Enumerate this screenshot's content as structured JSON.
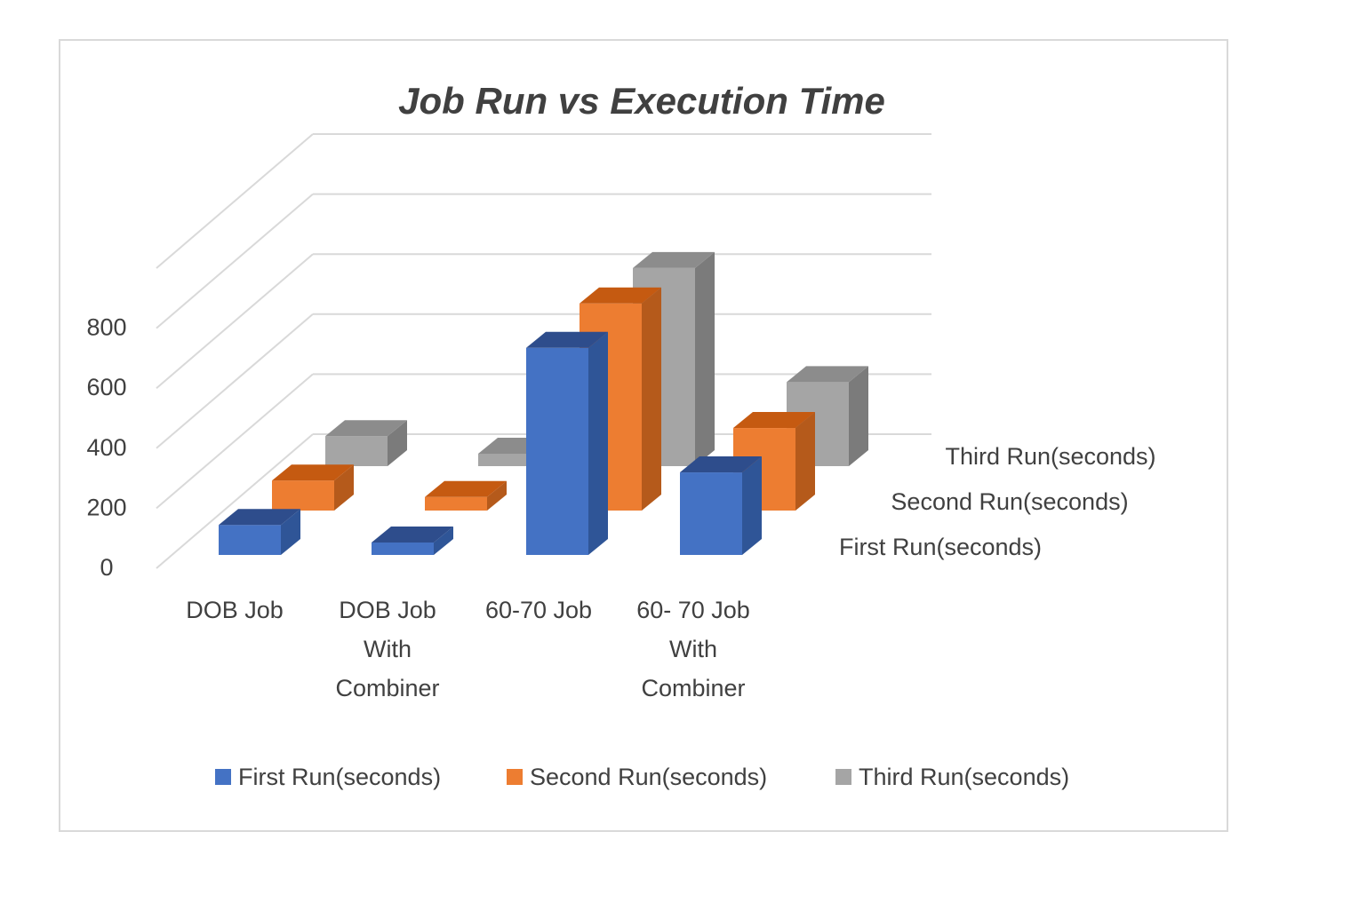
{
  "chart_data": {
    "type": "bar",
    "subtype": "3d-clustered-column",
    "title": "Job Run vs Execution Time",
    "categories": [
      "DOB Job",
      "DOB Job With Combiner",
      "60-70 Job",
      "60- 70 Job With Combiner"
    ],
    "category_lines": [
      [
        "DOB Job"
      ],
      [
        "DOB Job",
        "With",
        "Combiner"
      ],
      [
        "60-70 Job"
      ],
      [
        "60- 70 Job",
        "With",
        "Combiner"
      ]
    ],
    "series": [
      {
        "name": "First Run(seconds)",
        "color": "#4472c4",
        "side_color": "#2f5597",
        "top_color": "#2e4d8c",
        "values": [
          100,
          35,
          690,
          275
        ]
      },
      {
        "name": "Second Run(seconds)",
        "color": "#ed7d31",
        "side_color": "#b55a1b",
        "top_color": "#c55a11",
        "values": [
          100,
          45,
          690,
          275
        ]
      },
      {
        "name": "Third Run(seconds)",
        "color": "#a5a5a5",
        "side_color": "#7b7b7b",
        "top_color": "#8c8c8c",
        "values": [
          100,
          20,
          660,
          280
        ]
      }
    ],
    "y_ticks": [
      "0",
      "200",
      "400",
      "600",
      "800"
    ],
    "ylim": [
      0,
      1000
    ],
    "grid": true,
    "legend_position": "bottom",
    "depth_axis_labels": [
      "First Run(seconds)",
      "Second Run(seconds)",
      "Third Run(seconds)"
    ]
  }
}
